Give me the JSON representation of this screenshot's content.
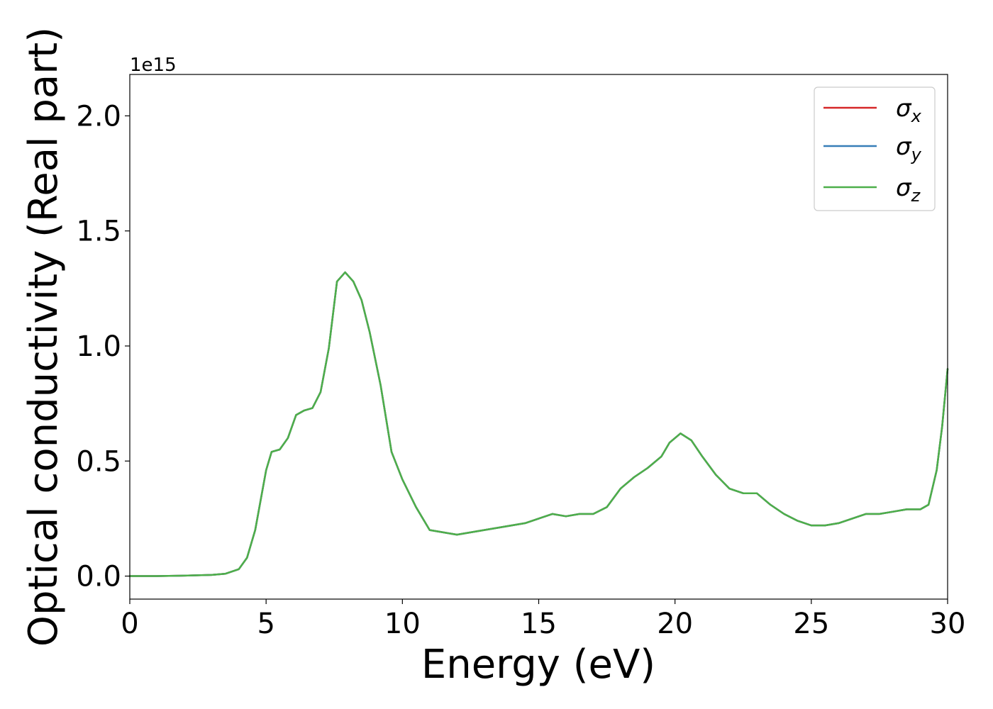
{
  "chart_data": {
    "type": "line",
    "xlabel": "Energy (eV)",
    "ylabel": "Optical conductivity (Real part)",
    "y_offset_label": "1e15",
    "xlim": [
      0,
      30
    ],
    "ylim": [
      -0.1,
      2.18
    ],
    "x_ticks": [
      0,
      5,
      10,
      15,
      20,
      25,
      30
    ],
    "x_tick_labels": [
      "0",
      "5",
      "10",
      "15",
      "20",
      "25",
      "30"
    ],
    "y_ticks": [
      0,
      0.5,
      1.0,
      1.5,
      2.0
    ],
    "y_tick_labels": [
      "0.0",
      "0.5",
      "1.0",
      "1.5",
      "2.0"
    ],
    "grid": false,
    "legend_position": "top-right",
    "x": [
      0,
      1,
      2,
      3,
      3.5,
      4.0,
      4.3,
      4.6,
      4.8,
      5.0,
      5.2,
      5.5,
      5.8,
      6.1,
      6.4,
      6.7,
      7.0,
      7.3,
      7.6,
      7.9,
      8.2,
      8.5,
      8.8,
      9.2,
      9.6,
      10.0,
      10.5,
      11.0,
      11.5,
      12.0,
      12.5,
      13.0,
      13.5,
      14.0,
      14.5,
      15.0,
      15.5,
      16.0,
      16.5,
      17.0,
      17.5,
      18.0,
      18.5,
      19.0,
      19.5,
      19.8,
      20.2,
      20.6,
      21.0,
      21.5,
      22.0,
      22.5,
      23.0,
      23.5,
      24.0,
      24.5,
      25.0,
      25.5,
      26.0,
      26.5,
      27.0,
      27.5,
      28.0,
      28.5,
      29.0,
      29.3,
      29.6,
      29.8,
      30.0
    ],
    "series": [
      {
        "name": "σx",
        "color": "#d62728",
        "values": [
          0.0,
          0.0,
          0.002,
          0.005,
          0.01,
          0.03,
          0.08,
          0.2,
          0.33,
          0.46,
          0.54,
          0.55,
          0.6,
          0.7,
          0.72,
          0.73,
          0.8,
          0.99,
          1.28,
          1.32,
          1.28,
          1.2,
          1.06,
          0.83,
          0.54,
          0.42,
          0.3,
          0.2,
          0.19,
          0.18,
          0.19,
          0.2,
          0.21,
          0.22,
          0.23,
          0.25,
          0.27,
          0.26,
          0.27,
          0.27,
          0.3,
          0.38,
          0.43,
          0.47,
          0.52,
          0.58,
          0.62,
          0.59,
          0.52,
          0.44,
          0.38,
          0.36,
          0.36,
          0.31,
          0.27,
          0.24,
          0.22,
          0.22,
          0.23,
          0.25,
          0.27,
          0.27,
          0.28,
          0.29,
          0.29,
          0.31,
          0.46,
          0.65,
          0.9
        ]
      },
      {
        "name": "σy",
        "color": "#377eb8",
        "values": [
          0.0,
          0.0,
          0.002,
          0.005,
          0.01,
          0.03,
          0.08,
          0.2,
          0.33,
          0.46,
          0.54,
          0.55,
          0.6,
          0.7,
          0.72,
          0.73,
          0.8,
          0.99,
          1.28,
          1.32,
          1.28,
          1.2,
          1.06,
          0.83,
          0.54,
          0.42,
          0.3,
          0.2,
          0.19,
          0.18,
          0.19,
          0.2,
          0.21,
          0.22,
          0.23,
          0.25,
          0.27,
          0.26,
          0.27,
          0.27,
          0.3,
          0.38,
          0.43,
          0.47,
          0.52,
          0.58,
          0.62,
          0.59,
          0.52,
          0.44,
          0.38,
          0.36,
          0.36,
          0.31,
          0.27,
          0.24,
          0.22,
          0.22,
          0.23,
          0.25,
          0.27,
          0.27,
          0.28,
          0.29,
          0.29,
          0.31,
          0.46,
          0.65,
          0.9
        ]
      },
      {
        "name": "σz",
        "color": "#4daf4a",
        "values": [
          0.0,
          0.0,
          0.002,
          0.005,
          0.01,
          0.03,
          0.08,
          0.2,
          0.33,
          0.46,
          0.54,
          0.55,
          0.6,
          0.7,
          0.72,
          0.73,
          0.8,
          0.99,
          1.28,
          1.32,
          1.28,
          1.2,
          1.06,
          0.83,
          0.54,
          0.42,
          0.3,
          0.2,
          0.19,
          0.18,
          0.19,
          0.2,
          0.21,
          0.22,
          0.23,
          0.25,
          0.27,
          0.26,
          0.27,
          0.27,
          0.3,
          0.38,
          0.43,
          0.47,
          0.52,
          0.58,
          0.62,
          0.59,
          0.52,
          0.44,
          0.38,
          0.36,
          0.36,
          0.31,
          0.27,
          0.24,
          0.22,
          0.22,
          0.23,
          0.25,
          0.27,
          0.27,
          0.28,
          0.29,
          0.29,
          0.31,
          0.46,
          0.65,
          0.9
        ]
      }
    ]
  }
}
